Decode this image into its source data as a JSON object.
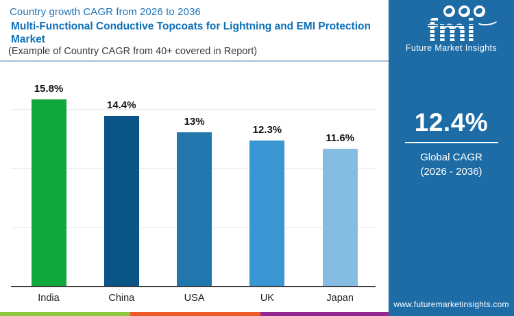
{
  "header": {
    "title": "Country growth CAGR from 2026 to 2036",
    "subtitle": "Multi-Functional Conductive Topcoats for Lightning and EMI Protection Market",
    "note": "(Example of Country CAGR from 40+ covered in Report)"
  },
  "chart_data": {
    "type": "bar",
    "title": "Country growth CAGR from 2026 to 2036",
    "categories": [
      "India",
      "China",
      "USA",
      "UK",
      "Japan"
    ],
    "values": [
      15.8,
      14.4,
      13,
      12.3,
      11.6
    ],
    "value_labels": [
      "15.8%",
      "14.4%",
      "13%",
      "12.3%",
      "11.6%"
    ],
    "bar_colors": [
      "#10a83c",
      "#0a5588",
      "#2277ae",
      "#3a96d2",
      "#85bce2"
    ],
    "xlabel": "",
    "ylabel": "",
    "ylim": [
      0,
      18.5
    ],
    "gridlines": [
      5,
      10,
      15
    ],
    "grid": "horizontal-only",
    "legend": "none"
  },
  "sidebar": {
    "logo": {
      "text": "fmi",
      "tagline": "Future Market Insights",
      "globe_icons": [
        "globe-americas-icon",
        "globe-europe-icon",
        "globe-asia-icon"
      ]
    },
    "stat": {
      "value": "12.4%",
      "label_line1": "Global CAGR",
      "label_line2": "(2026 - 2036)"
    },
    "website": "www.futuremarketinsights.com",
    "bg_color": "#1e6ca6"
  },
  "footer_strip_colors": [
    "#8dc63f",
    "#ee5a26",
    "#92278f"
  ]
}
